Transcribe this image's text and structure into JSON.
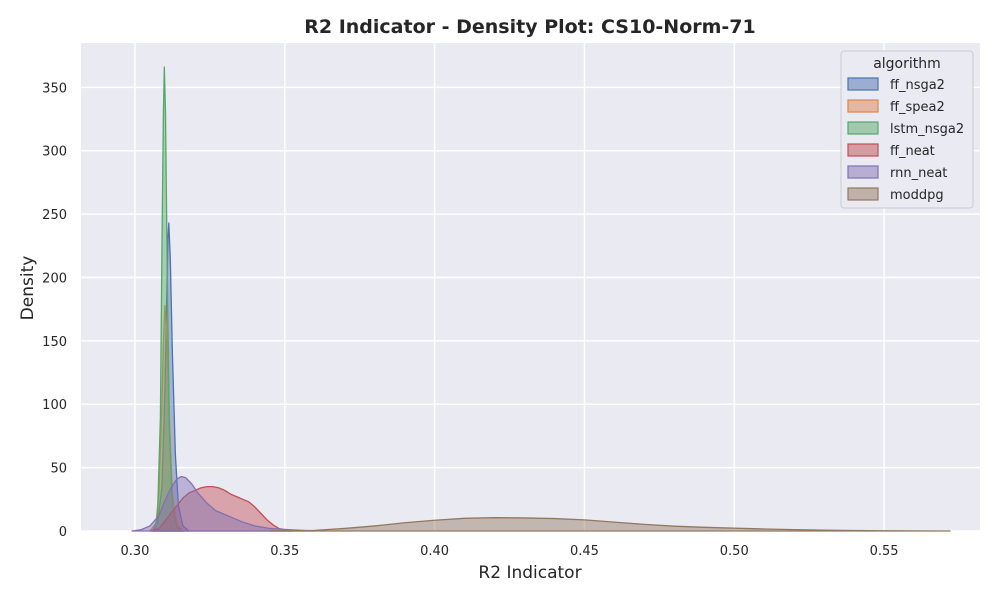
{
  "chart_data": {
    "type": "area",
    "title": "R2 Indicator - Density Plot: CS10-Norm-71",
    "xlabel": "R2 Indicator",
    "ylabel": "Density",
    "xlim": [
      0.282,
      0.582
    ],
    "ylim": [
      0,
      385
    ],
    "xticks": [
      0.3,
      0.35,
      0.4,
      0.45,
      0.5,
      0.55
    ],
    "xtick_labels": [
      "0.30",
      "0.35",
      "0.40",
      "0.45",
      "0.50",
      "0.55"
    ],
    "yticks": [
      0,
      50,
      100,
      150,
      200,
      250,
      300,
      350
    ],
    "ytick_labels": [
      "0",
      "50",
      "100",
      "150",
      "200",
      "250",
      "300",
      "350"
    ],
    "grid": true,
    "background": "#eaeaf2",
    "legend": {
      "title": "algorithm",
      "placement": "top-right"
    },
    "series": [
      {
        "name": "ff_nsga2",
        "color": "#4c72b0",
        "points": [
          [
            0.306,
            0
          ],
          [
            0.3075,
            5
          ],
          [
            0.309,
            35
          ],
          [
            0.31,
            110
          ],
          [
            0.3105,
            170
          ],
          [
            0.311,
            230
          ],
          [
            0.3113,
            243
          ],
          [
            0.3118,
            215
          ],
          [
            0.3125,
            140
          ],
          [
            0.3135,
            60
          ],
          [
            0.3145,
            20
          ],
          [
            0.316,
            4
          ],
          [
            0.318,
            0
          ]
        ]
      },
      {
        "name": "ff_spea2",
        "color": "#dd8452",
        "points": [
          [
            0.305,
            0
          ],
          [
            0.307,
            6
          ],
          [
            0.308,
            30
          ],
          [
            0.309,
            100
          ],
          [
            0.3095,
            150
          ],
          [
            0.31,
            178
          ],
          [
            0.3105,
            160
          ],
          [
            0.3115,
            90
          ],
          [
            0.3125,
            30
          ],
          [
            0.314,
            6
          ],
          [
            0.316,
            0
          ]
        ]
      },
      {
        "name": "lstm_nsga2",
        "color": "#55a868",
        "points": [
          [
            0.306,
            0
          ],
          [
            0.3075,
            10
          ],
          [
            0.3085,
            90
          ],
          [
            0.309,
            220
          ],
          [
            0.3095,
            330
          ],
          [
            0.3098,
            366
          ],
          [
            0.3102,
            330
          ],
          [
            0.3108,
            200
          ],
          [
            0.3115,
            80
          ],
          [
            0.3125,
            20
          ],
          [
            0.314,
            3
          ],
          [
            0.316,
            0
          ]
        ]
      },
      {
        "name": "ff_neat",
        "color": "#c44e52",
        "points": [
          [
            0.305,
            0
          ],
          [
            0.308,
            2
          ],
          [
            0.31,
            8
          ],
          [
            0.312,
            14
          ],
          [
            0.314,
            20
          ],
          [
            0.316,
            26
          ],
          [
            0.318,
            30
          ],
          [
            0.32,
            32
          ],
          [
            0.322,
            34
          ],
          [
            0.324,
            35
          ],
          [
            0.326,
            35
          ],
          [
            0.328,
            34
          ],
          [
            0.33,
            32
          ],
          [
            0.332,
            29
          ],
          [
            0.334,
            27
          ],
          [
            0.336,
            25
          ],
          [
            0.338,
            23
          ],
          [
            0.34,
            19
          ],
          [
            0.342,
            14
          ],
          [
            0.344,
            9
          ],
          [
            0.346,
            5
          ],
          [
            0.348,
            2
          ],
          [
            0.352,
            0
          ]
        ]
      },
      {
        "name": "rnn_neat",
        "color": "#8172b3",
        "points": [
          [
            0.299,
            0
          ],
          [
            0.302,
            1
          ],
          [
            0.305,
            4
          ],
          [
            0.308,
            12
          ],
          [
            0.31,
            24
          ],
          [
            0.312,
            34
          ],
          [
            0.314,
            41
          ],
          [
            0.3155,
            43
          ],
          [
            0.317,
            42
          ],
          [
            0.319,
            37
          ],
          [
            0.321,
            30
          ],
          [
            0.324,
            22
          ],
          [
            0.327,
            16
          ],
          [
            0.33,
            13
          ],
          [
            0.333,
            10
          ],
          [
            0.336,
            7
          ],
          [
            0.34,
            4
          ],
          [
            0.345,
            2
          ],
          [
            0.352,
            1
          ],
          [
            0.36,
            0
          ]
        ]
      },
      {
        "name": "moddpg",
        "color": "#937860",
        "points": [
          [
            0.345,
            0
          ],
          [
            0.36,
            0.5
          ],
          [
            0.37,
            2
          ],
          [
            0.38,
            4
          ],
          [
            0.39,
            6.5
          ],
          [
            0.4,
            8.5
          ],
          [
            0.41,
            10
          ],
          [
            0.42,
            10.5
          ],
          [
            0.43,
            10.3
          ],
          [
            0.44,
            9.8
          ],
          [
            0.45,
            8.8
          ],
          [
            0.46,
            7
          ],
          [
            0.47,
            5.2
          ],
          [
            0.48,
            3.8
          ],
          [
            0.49,
            2.9
          ],
          [
            0.5,
            2.2
          ],
          [
            0.51,
            1.6
          ],
          [
            0.52,
            1.1
          ],
          [
            0.53,
            0.7
          ],
          [
            0.54,
            0.4
          ],
          [
            0.55,
            0.2
          ],
          [
            0.56,
            0.1
          ],
          [
            0.572,
            0
          ]
        ]
      }
    ]
  }
}
